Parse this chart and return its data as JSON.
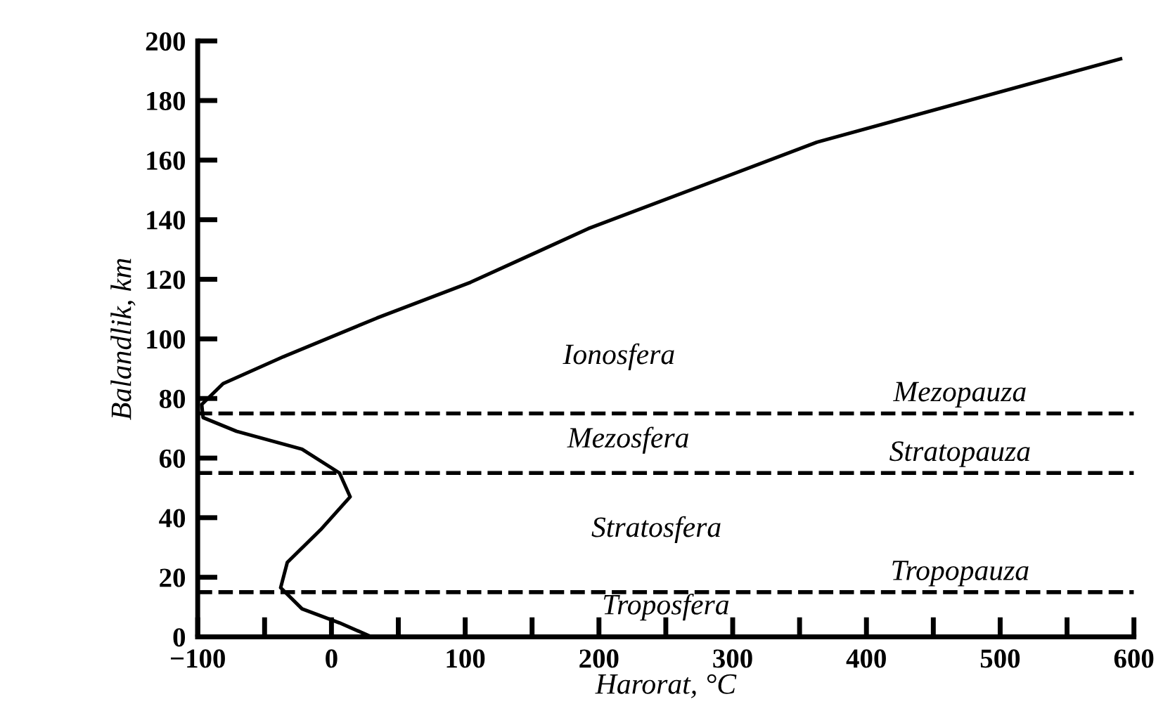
{
  "chart_data": {
    "type": "line",
    "xlabel": "Harorat, °C",
    "ylabel": "Balandlik, km",
    "series": [
      {
        "color": "#000000",
        "x": [
          30,
          6,
          -22,
          -38,
          -33,
          -8,
          14,
          6,
          -22,
          -71,
          -96,
          -97,
          -81,
          -36,
          34,
          104,
          153,
          192,
          363,
          590
        ],
        "values": [
          0,
          4.7,
          9.4,
          16.5,
          25,
          36,
          47,
          55,
          63,
          69,
          73.6,
          78,
          85,
          94,
          107,
          119,
          129,
          137,
          166,
          194
        ]
      }
    ],
    "xlim": [
      -100,
      600
    ],
    "ylim": [
      0,
      200
    ],
    "xticks": [
      -100,
      {
        "value": -50,
        "label": null
      },
      0,
      {
        "value": 50,
        "label": null
      },
      100,
      {
        "value": 150,
        "label": null
      },
      200,
      {
        "value": 250,
        "label": null
      },
      300,
      {
        "value": 350,
        "label": null
      },
      400,
      {
        "value": 450,
        "label": null
      },
      500,
      {
        "value": 550,
        "label": null
      },
      600
    ],
    "yticks": [
      0,
      20,
      40,
      60,
      80,
      100,
      120,
      140,
      160,
      180,
      200
    ],
    "ref_lines": [
      {
        "axis": "y",
        "value": 75,
        "label": "Mezopauza",
        "color": "#000000",
        "line_style": "dashed"
      },
      {
        "axis": "y",
        "value": 55,
        "label": "Stratopauza",
        "color": "#000000",
        "line_style": "dashed"
      },
      {
        "axis": "y",
        "value": 15,
        "label": "Tropopauza",
        "color": "#000000",
        "line_style": "dashed"
      }
    ],
    "annotations": [
      "Ionosfera",
      "Mezosfera",
      "Stratosfera",
      "Troposfera"
    ],
    "grid": false,
    "legend": false,
    "marker": "none",
    "line_style": "solid"
  }
}
